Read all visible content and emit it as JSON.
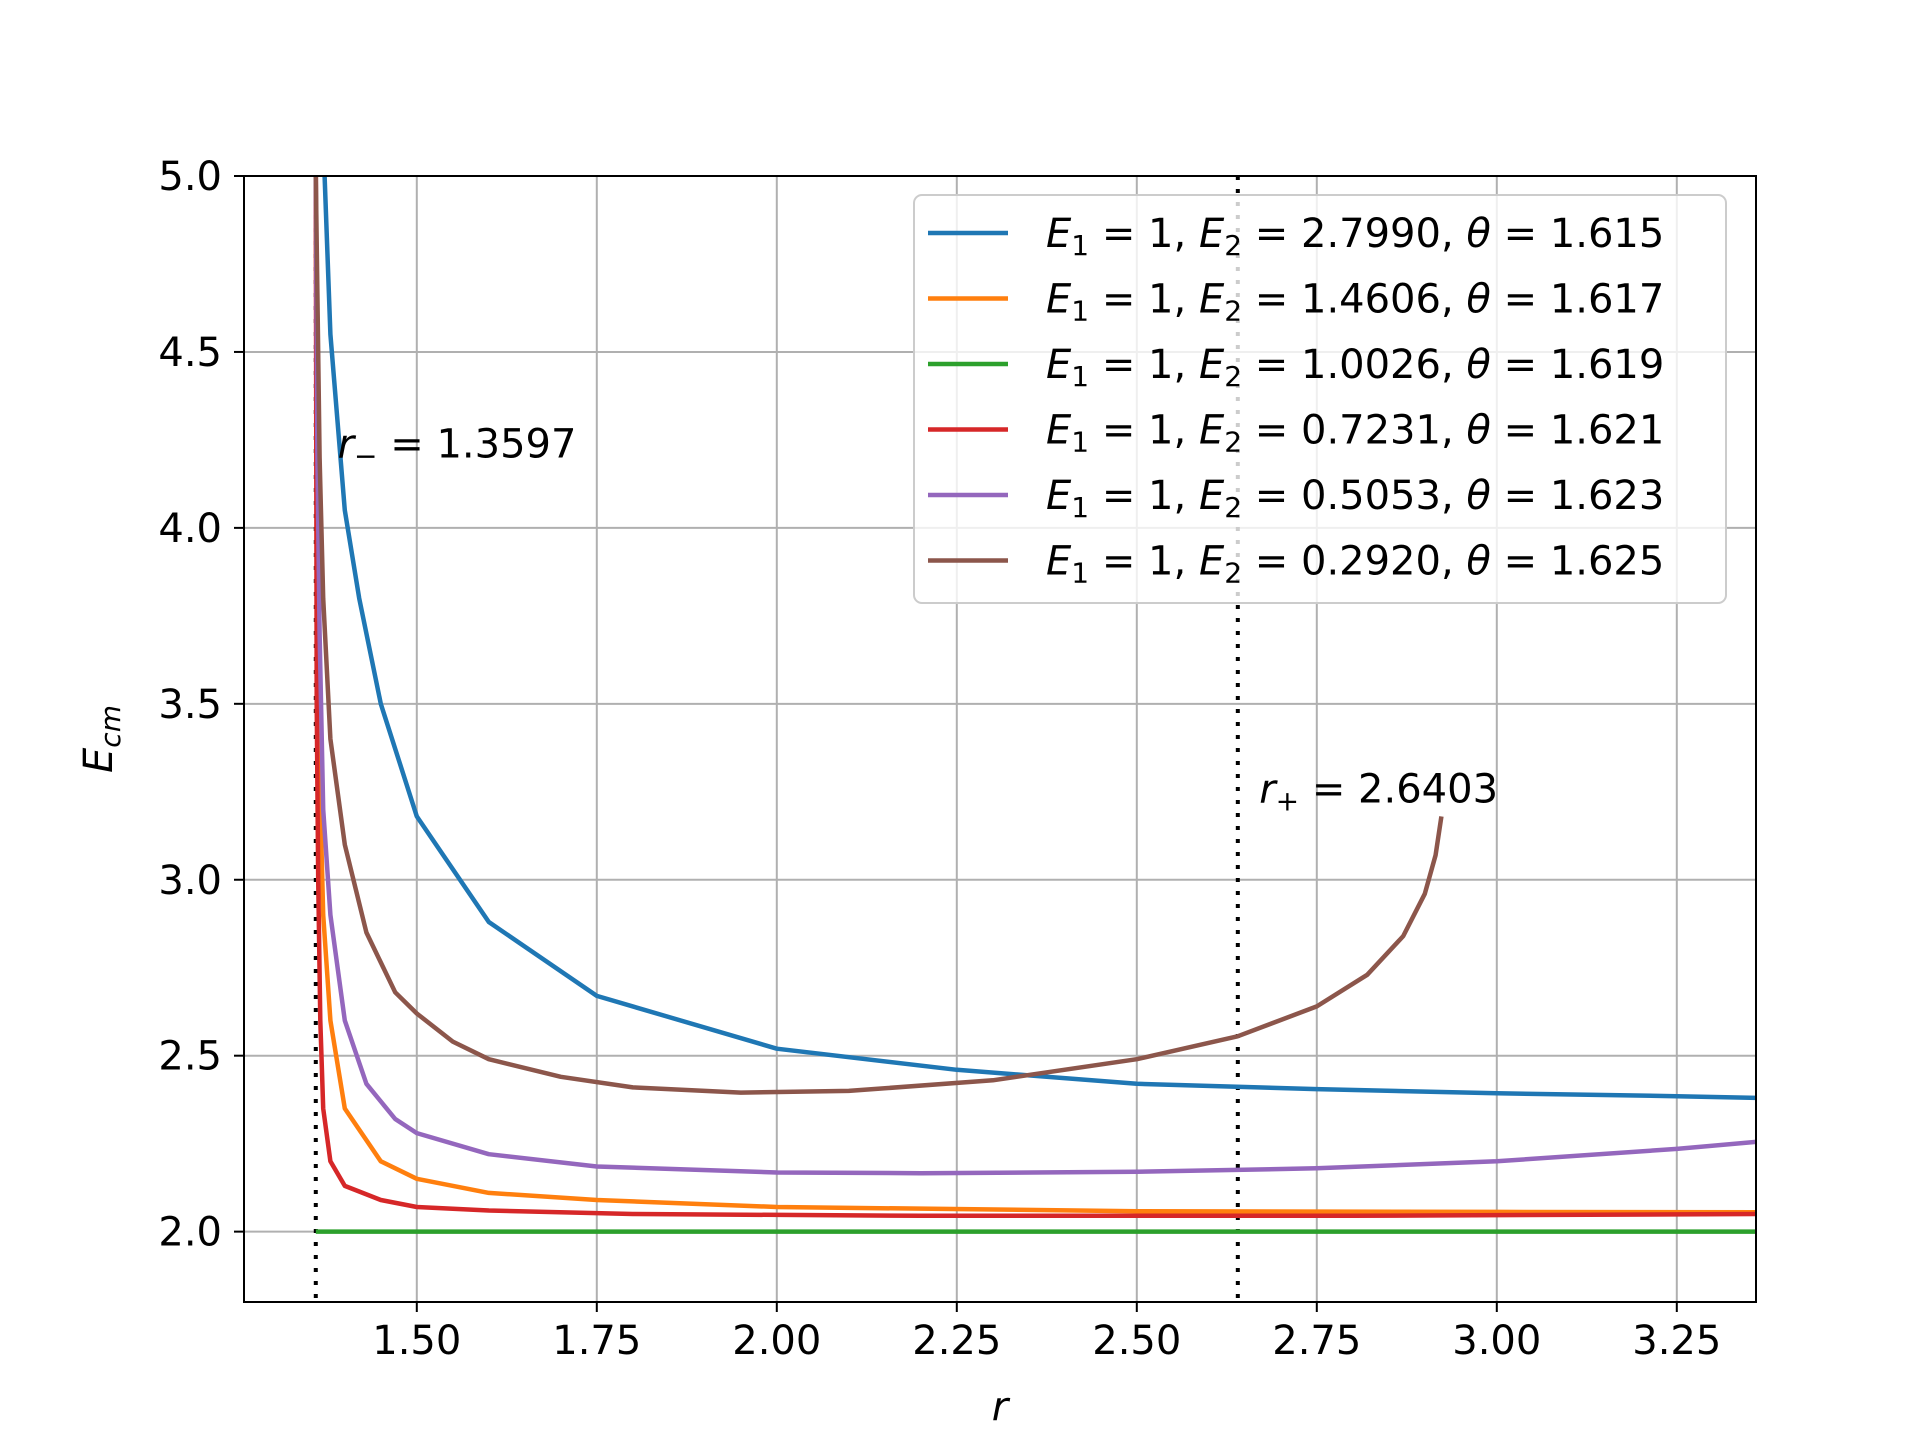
{
  "chart_data": {
    "type": "line",
    "xlabel": "r",
    "ylabel": "E_cm",
    "xlim": [
      1.26,
      3.36
    ],
    "ylim": [
      1.8,
      5.0
    ],
    "grid": true,
    "legend_position": "top-right",
    "x_ticks": [
      "1.50",
      "1.75",
      "2.00",
      "2.25",
      "2.50",
      "2.75",
      "3.00",
      "3.25"
    ],
    "y_ticks": [
      "2.0",
      "2.5",
      "3.0",
      "3.5",
      "4.0",
      "4.5",
      "5.0"
    ],
    "vlines": [
      {
        "x": 1.3597,
        "label": "r− = 1.3597",
        "label_x": 1.39,
        "label_y": 4.2
      },
      {
        "x": 2.6403,
        "label": "r+ = 2.6403",
        "label_x": 2.67,
        "label_y": 3.22
      }
    ],
    "series": [
      {
        "name": "E1 = 1, E2 = 2.7990, θ = 1.615",
        "color": "#1f77b4",
        "x": [
          1.372,
          1.38,
          1.39,
          1.4,
          1.42,
          1.45,
          1.5,
          1.6,
          1.75,
          2.0,
          2.25,
          2.5,
          2.75,
          3.0,
          3.25,
          3.36
        ],
        "y": [
          5.0,
          4.55,
          4.3,
          4.05,
          3.8,
          3.5,
          3.18,
          2.88,
          2.67,
          2.52,
          2.46,
          2.42,
          2.405,
          2.393,
          2.385,
          2.38
        ]
      },
      {
        "name": "E1 = 1, E2 = 1.4606, θ = 1.617",
        "color": "#ff7f0e",
        "x": [
          1.3597,
          1.362,
          1.365,
          1.37,
          1.38,
          1.4,
          1.45,
          1.5,
          1.6,
          1.75,
          2.0,
          2.5,
          3.0,
          3.36
        ],
        "y": [
          5.0,
          3.8,
          3.3,
          2.9,
          2.6,
          2.35,
          2.2,
          2.15,
          2.11,
          2.09,
          2.07,
          2.058,
          2.056,
          2.055
        ]
      },
      {
        "name": "E1 = 1, E2 = 1.0026, θ = 1.619",
        "color": "#2ca02c",
        "x": [
          1.3597,
          3.36
        ],
        "y": [
          2.0,
          2.0
        ]
      },
      {
        "name": "E1 = 1, E2 = 0.7231, θ = 1.621",
        "color": "#d62728",
        "x": [
          1.3597,
          1.361,
          1.363,
          1.366,
          1.37,
          1.38,
          1.4,
          1.45,
          1.5,
          1.6,
          1.8,
          2.2,
          2.8,
          3.36
        ],
        "y": [
          5.0,
          3.5,
          3.0,
          2.6,
          2.35,
          2.2,
          2.13,
          2.09,
          2.07,
          2.06,
          2.05,
          2.045,
          2.045,
          2.05
        ]
      },
      {
        "name": "E1 = 1, E2 = 0.5053, θ = 1.623",
        "color": "#9467bd",
        "x": [
          1.3597,
          1.362,
          1.365,
          1.37,
          1.38,
          1.4,
          1.43,
          1.47,
          1.5,
          1.6,
          1.75,
          2.0,
          2.2,
          2.5,
          2.75,
          3.0,
          3.25,
          3.36
        ],
        "y": [
          5.0,
          4.2,
          3.7,
          3.2,
          2.9,
          2.6,
          2.42,
          2.32,
          2.28,
          2.22,
          2.185,
          2.168,
          2.166,
          2.17,
          2.18,
          2.2,
          2.235,
          2.255
        ]
      },
      {
        "name": "E1 = 1, E2 = 0.2920, θ = 1.625",
        "color": "#8c564b",
        "x": [
          1.3597,
          1.365,
          1.37,
          1.38,
          1.4,
          1.43,
          1.47,
          1.5,
          1.55,
          1.6,
          1.7,
          1.8,
          1.95,
          2.1,
          2.3,
          2.5,
          2.64,
          2.75,
          2.82,
          2.87,
          2.9,
          2.915,
          2.923
        ],
        "y": [
          5.0,
          4.2,
          3.8,
          3.4,
          3.1,
          2.85,
          2.68,
          2.62,
          2.54,
          2.49,
          2.44,
          2.41,
          2.395,
          2.4,
          2.43,
          2.49,
          2.555,
          2.64,
          2.73,
          2.84,
          2.96,
          3.07,
          3.18
        ]
      }
    ]
  }
}
